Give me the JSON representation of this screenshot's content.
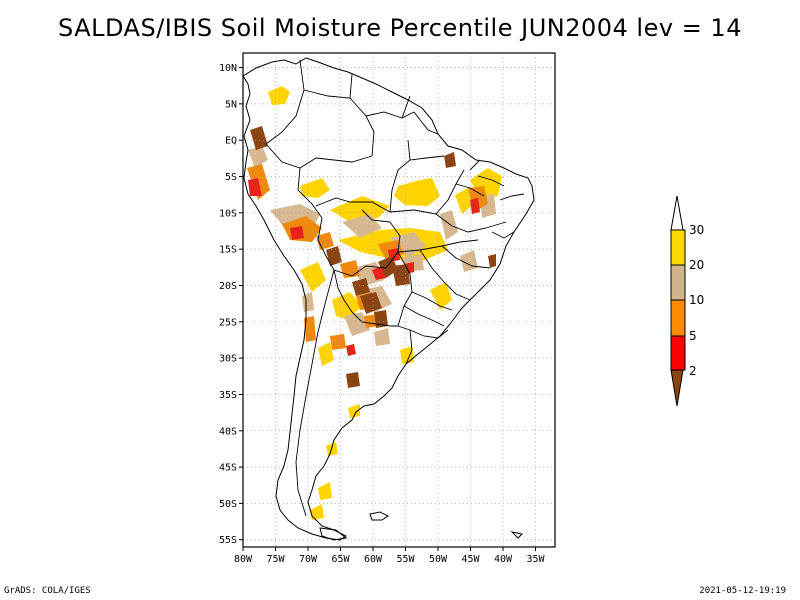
{
  "title": "SALDAS/IBIS Soil Moisture Percentile JUN2004 lev = 14",
  "footer_left": "GrADS: COLA/IGES",
  "footer_right": "2021-05-12-19:19",
  "map": {
    "lon_range": [
      -80,
      -32
    ],
    "lat_range": [
      -56,
      12
    ],
    "lat_ticks": [
      {
        "v": 10,
        "label": "10N"
      },
      {
        "v": 5,
        "label": "5N"
      },
      {
        "v": 0,
        "label": "EQ"
      },
      {
        "v": -5,
        "label": "5S"
      },
      {
        "v": -10,
        "label": "10S"
      },
      {
        "v": -15,
        "label": "15S"
      },
      {
        "v": -20,
        "label": "20S"
      },
      {
        "v": -25,
        "label": "25S"
      },
      {
        "v": -30,
        "label": "30S"
      },
      {
        "v": -35,
        "label": "35S"
      },
      {
        "v": -40,
        "label": "40S"
      },
      {
        "v": -45,
        "label": "45S"
      },
      {
        "v": -50,
        "label": "50S"
      },
      {
        "v": -55,
        "label": "55S"
      }
    ],
    "lon_ticks": [
      {
        "v": -80,
        "label": "80W"
      },
      {
        "v": -75,
        "label": "75W"
      },
      {
        "v": -70,
        "label": "70W"
      },
      {
        "v": -65,
        "label": "65W"
      },
      {
        "v": -60,
        "label": "60W"
      },
      {
        "v": -55,
        "label": "55W"
      },
      {
        "v": -50,
        "label": "50W"
      },
      {
        "v": -45,
        "label": "45W"
      },
      {
        "v": -40,
        "label": "40W"
      },
      {
        "v": -35,
        "label": "35W"
      }
    ]
  },
  "colorbar": {
    "labels": [
      "2",
      "5",
      "10",
      "20",
      "30"
    ],
    "colors": [
      "#8b4513",
      "#ff0000",
      "#ff8c00",
      "#d2b48c",
      "#ffd700",
      "#ffffff"
    ]
  },
  "patch_colors": {
    "p2": "#8b4513",
    "p5": "#e8231a",
    "p10": "#f08a0e",
    "p20": "#d8b890",
    "p30": "#ffd400"
  }
}
